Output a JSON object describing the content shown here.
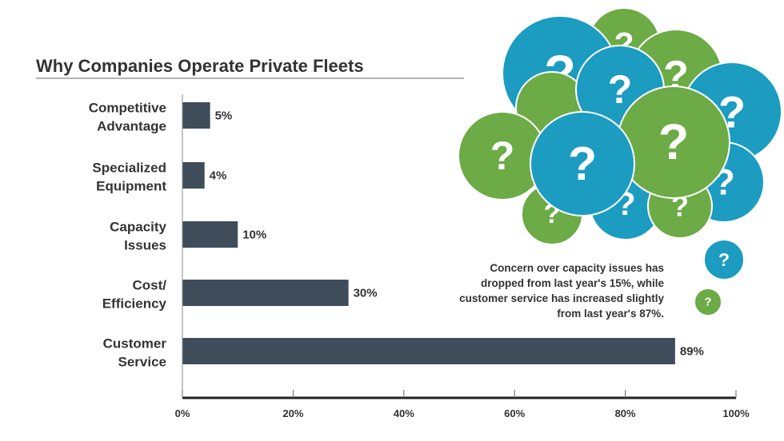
{
  "chart_data": {
    "type": "bar",
    "orientation": "horizontal",
    "title": "Why Companies Operate Private Fleets",
    "categories": [
      [
        "Competitive",
        "Advantage"
      ],
      [
        "Specialized",
        "Equipment"
      ],
      [
        "Capacity",
        "Issues"
      ],
      [
        "Cost/",
        "Efficiency"
      ],
      [
        "Customer",
        "Service"
      ]
    ],
    "values": [
      5,
      4,
      10,
      30,
      89
    ],
    "value_labels": [
      "5%",
      "4%",
      "10%",
      "30%",
      "89%"
    ],
    "xlim": [
      0,
      100
    ],
    "xticks": [
      0,
      20,
      40,
      60,
      80,
      100
    ],
    "xtick_labels": [
      "0%",
      "20%",
      "40%",
      "60%",
      "80%",
      "100%"
    ],
    "xlabel": "",
    "ylabel": "",
    "grid": false,
    "annotation": [
      "Concern over capacity issues has",
      "dropped from last year's 15%, while",
      "customer service has increased slightly",
      "from last year's 87%."
    ]
  },
  "colors": {
    "bar": "#3e4d59",
    "blue": "#1c9cc0",
    "green": "#6cab46",
    "text": "#333333"
  },
  "decoration": {
    "symbol": "?"
  }
}
